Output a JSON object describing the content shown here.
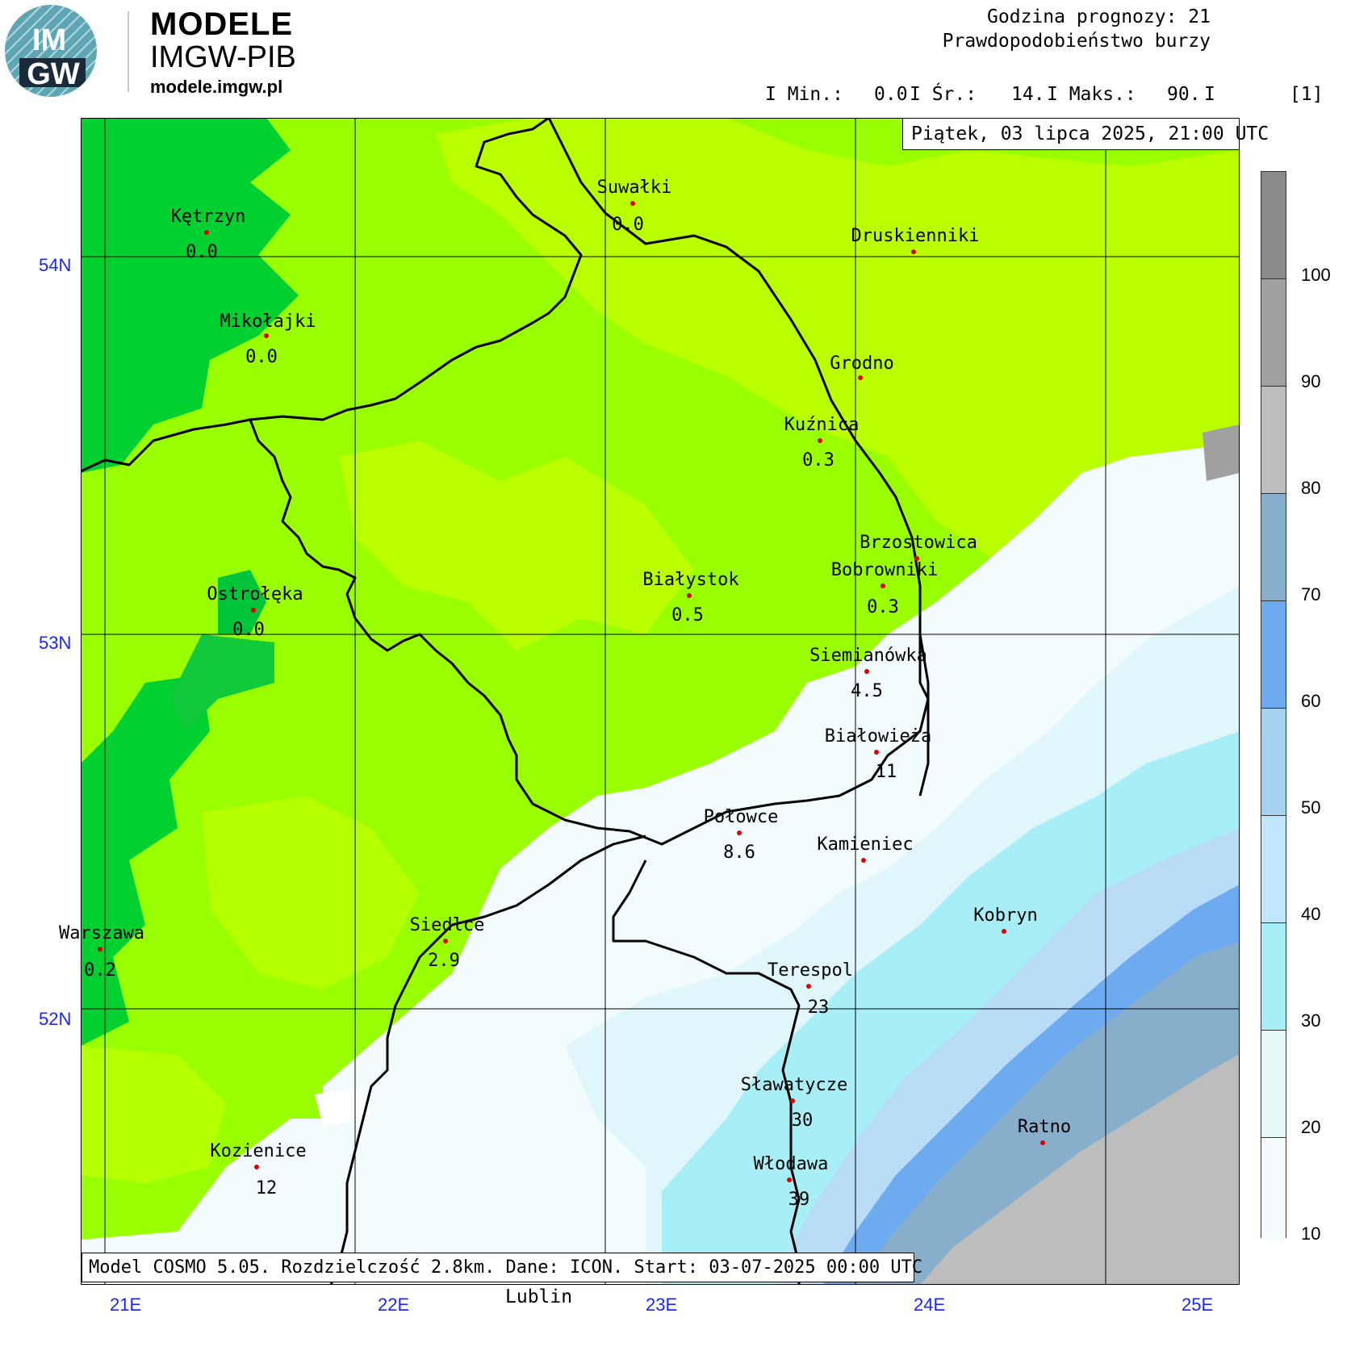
{
  "brand": {
    "logo_text_top": "IM",
    "logo_text_bottom": "GW",
    "title": "MODELE",
    "subtitle": "IMGW-PIB",
    "url": "modele.imgw.pl"
  },
  "header": {
    "line1": "Godzina prognozy: 21",
    "line2": "Prawdopodobieństwo burzy",
    "min_label": "I Min.:",
    "min_value": "0.0",
    "avg_label": "I Śr.:",
    "avg_value": "14.",
    "max_label": "I Maks.:",
    "max_value": "90.",
    "sep": "I",
    "unit": "[1]"
  },
  "date_label": "Piątek, 03 lipca 2025, 21:00 UTC",
  "footer": "Model COSMO 5.05. Rozdzielczość 2.8km. Dane: ICON. Start: 03-07-2025 00:00 UTC",
  "below_label": "Lublin",
  "lon_labels": [
    "21E",
    "22E",
    "23E",
    "24E",
    "25E"
  ],
  "lat_labels": [
    "54N",
    "53N",
    "52N"
  ],
  "legend": {
    "labels": [
      "100",
      "90",
      "80",
      "70",
      "60",
      "50",
      "40",
      "30",
      "20",
      "10"
    ],
    "colors": [
      "#8a8a8a",
      "#a0a0a0",
      "#bdbdbd",
      "#87aecb",
      "#6eaaf0",
      "#a6d2f2",
      "#c0e6ff",
      "#a8eef6",
      "#e6f8f8",
      "#f4fcfe"
    ]
  },
  "stations": [
    {
      "name": "Kętrzyn",
      "value": "0.0"
    },
    {
      "name": "Suwałki",
      "value": "0.0"
    },
    {
      "name": "Druskienniki",
      "value": ""
    },
    {
      "name": "Mikołajki",
      "value": "0.0"
    },
    {
      "name": "Grodno",
      "value": ""
    },
    {
      "name": "Kuźnica",
      "value": "0.3"
    },
    {
      "name": "Brzostowica",
      "value": ""
    },
    {
      "name": "Bobrowniki",
      "value": "0.3"
    },
    {
      "name": "Białystok",
      "value": "0.5"
    },
    {
      "name": "Ostrołęka",
      "value": "0.0"
    },
    {
      "name": "Siemianówka",
      "value": "4.5"
    },
    {
      "name": "Białowieża",
      "value": "11"
    },
    {
      "name": "Połowce",
      "value": "8.6"
    },
    {
      "name": "Kamieniec",
      "value": ""
    },
    {
      "name": "Kobryn",
      "value": ""
    },
    {
      "name": "Warszawa",
      "value": "0.2"
    },
    {
      "name": "Siedlce",
      "value": "2.9"
    },
    {
      "name": "Terespol",
      "value": "23"
    },
    {
      "name": "Sławatycze",
      "value": "30"
    },
    {
      "name": "Ratno",
      "value": ""
    },
    {
      "name": "Kozienice",
      "value": "12"
    },
    {
      "name": "Włodawa",
      "value": "39"
    }
  ]
}
